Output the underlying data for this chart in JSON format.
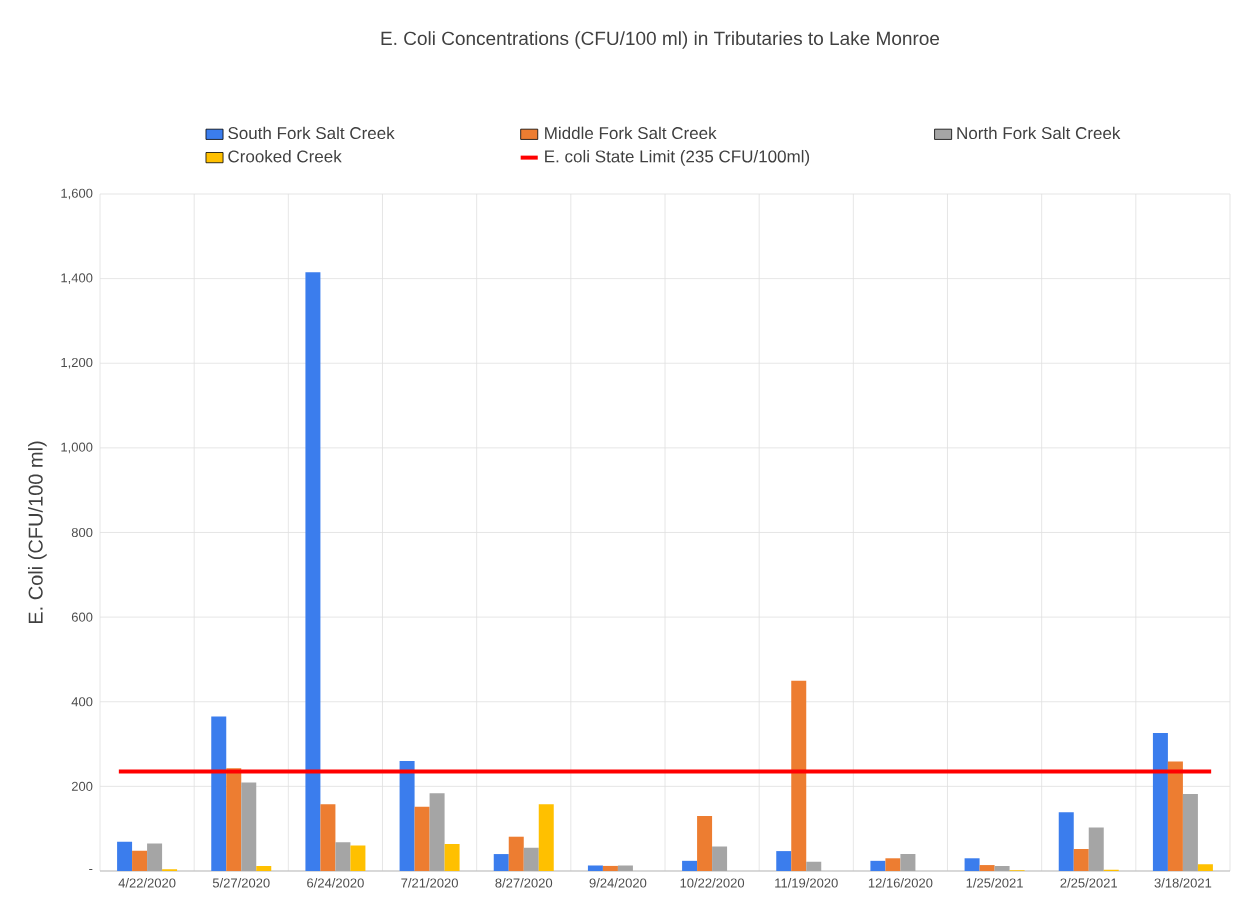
{
  "chart_data": {
    "type": "bar",
    "title": "E. Coli Concentrations (CFU/100 ml) in Tributaries to Lake Monroe",
    "ylabel": "E. Coli (CFU/100 ml)",
    "categories": [
      "4/22/2020",
      "5/27/2020",
      "6/24/2020",
      "7/21/2020",
      "8/27/2020",
      "9/24/2020",
      "10/22/2020",
      "11/19/2020",
      "12/16/2020",
      "1/25/2021",
      "2/25/2021",
      "3/18/2021"
    ],
    "series": [
      {
        "name": "South Fork Salt Creek",
        "color": "#3b7ded",
        "values": [
          69,
          365,
          1415,
          260,
          40,
          13,
          24,
          47,
          24,
          30,
          139,
          326
        ]
      },
      {
        "name": "Middle Fork Salt Creek",
        "color": "#ed7d31",
        "values": [
          48,
          243,
          158,
          152,
          81,
          12,
          130,
          450,
          30,
          14,
          52,
          259
        ]
      },
      {
        "name": "North Fork Salt Creek",
        "color": "#a5a5a5",
        "values": [
          65,
          209,
          68,
          184,
          55,
          13,
          58,
          22,
          40,
          12,
          103,
          182
        ]
      },
      {
        "name": "Crooked Creek",
        "color": "#ffc000",
        "values": [
          4,
          12,
          60,
          64,
          158,
          null,
          null,
          null,
          null,
          2,
          3,
          16
        ]
      }
    ],
    "ref_lines": [
      {
        "axis": "y",
        "value": 235,
        "label": "E. coli State Limit (235 CFU/100ml)",
        "color": "#ff0000"
      }
    ],
    "ylim": [
      0,
      1600
    ],
    "yticks": [
      {
        "value": 0,
        "label": "-"
      },
      200,
      400,
      600,
      800,
      {
        "value": 1000,
        "label": "1,000"
      },
      {
        "value": 1200,
        "label": "1,200"
      },
      {
        "value": 1400,
        "label": "1,400"
      },
      {
        "value": 1600,
        "label": "1,600"
      }
    ],
    "grid": true,
    "legend": "top"
  }
}
